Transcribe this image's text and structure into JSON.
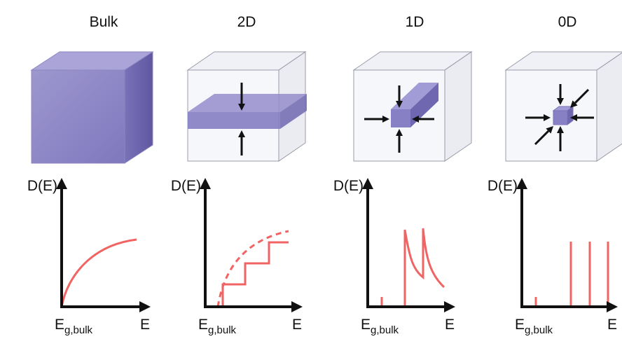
{
  "panels": [
    {
      "title": "Bulk",
      "y_label": "D(E)",
      "x_label": "E",
      "edge_label": {
        "main": "E",
        "sub": "g,bulk"
      }
    },
    {
      "title": "2D",
      "y_label": "D(E)",
      "x_label": "E",
      "edge_label": {
        "main": "E",
        "sub": "g,bulk"
      }
    },
    {
      "title": "1D",
      "y_label": "D(E)",
      "x_label": "E",
      "edge_label": {
        "main": "E",
        "sub": "g,bulk"
      }
    },
    {
      "title": "0D",
      "y_label": "D(E)",
      "x_label": "E",
      "edge_label": {
        "main": "E",
        "sub": "g,bulk"
      }
    }
  ]
}
